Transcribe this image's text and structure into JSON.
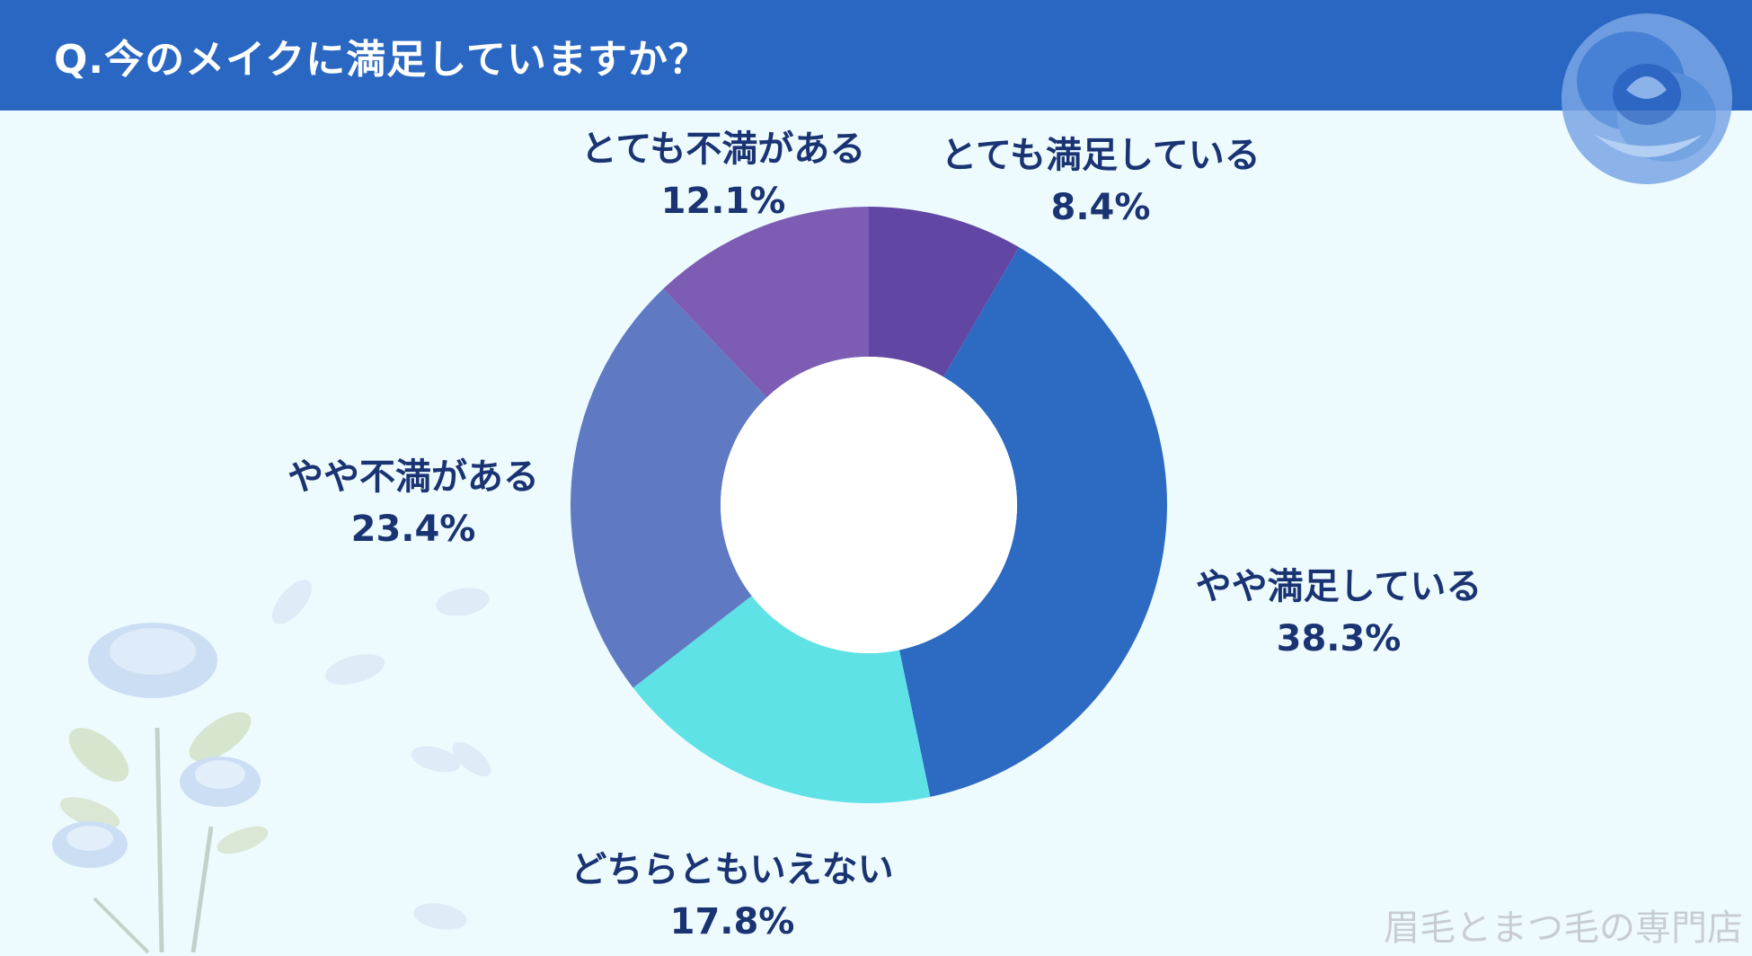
{
  "header": {
    "title": "Q.今のメイクに満足していますか？"
  },
  "colors": {
    "header_bg": "#2a67c2",
    "background": "#eefbfe",
    "label_text": "#1a3473",
    "slices": [
      "#6147a3",
      "#2d6ac2",
      "#5ee2e6",
      "#5f79c2",
      "#7d5db4"
    ]
  },
  "chart_data": {
    "type": "pie",
    "donut": true,
    "categories": [
      "とても満足している",
      "やや満足している",
      "どちらともいえない",
      "やや不満がある",
      "とても不満がある"
    ],
    "values": [
      8.4,
      38.3,
      17.8,
      23.4,
      12.1
    ],
    "value_labels": [
      "8.4%",
      "38.3%",
      "17.8%",
      "23.4%",
      "12.1%"
    ]
  },
  "watermark": "眉毛とまつ毛の専門店",
  "icons": [
    "blue-rose-icon",
    "rose-bouquet-icon",
    "petal-icon"
  ]
}
